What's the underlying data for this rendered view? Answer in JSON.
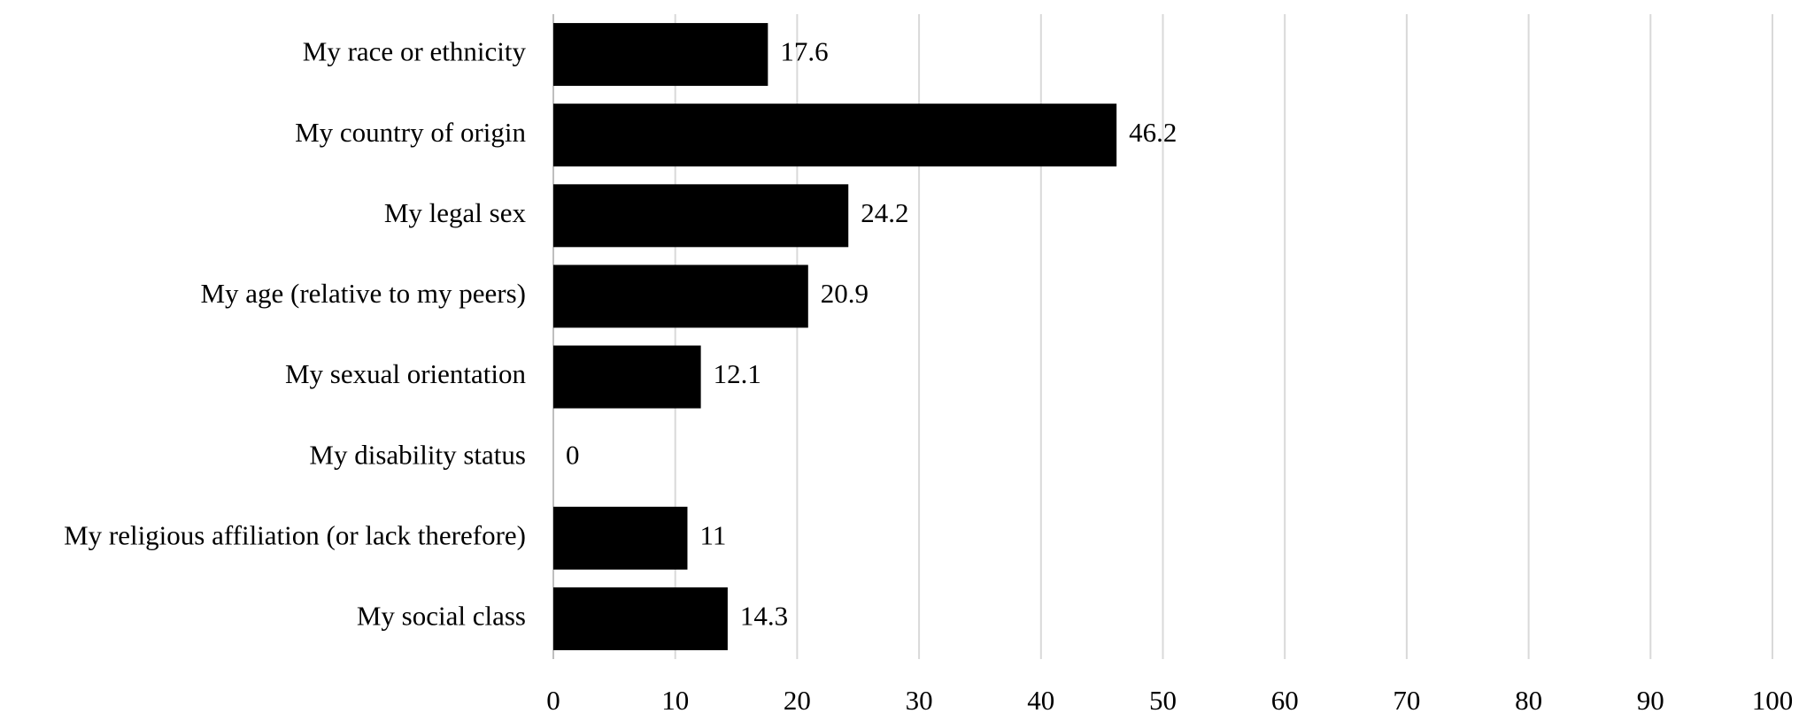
{
  "chart_data": {
    "type": "hbar",
    "categories": [
      "My race or ethnicity",
      "My country of origin",
      "My legal sex",
      "My age (relative to my peers)",
      "My sexual orientation",
      "My disability status",
      "My religious affiliation (or lack therefore)",
      "My social class"
    ],
    "values": [
      17.6,
      46.2,
      24.2,
      20.9,
      12.1,
      0,
      11,
      14.3
    ],
    "color": "#000000",
    "xlim": [
      0,
      100
    ],
    "xticks": [
      0,
      10,
      20,
      30,
      40,
      50,
      60,
      70,
      80,
      90,
      100
    ],
    "grid": true
  }
}
